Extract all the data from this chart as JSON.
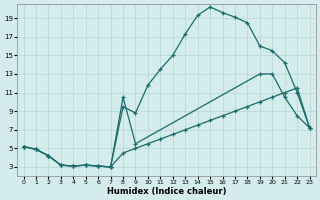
{
  "xlabel": "Humidex (Indice chaleur)",
  "bg_color": "#d4ecec",
  "grid_color": "#b8d4d4",
  "line_color": "#1a6b6b",
  "xlim": [
    -0.5,
    23.5
  ],
  "ylim": [
    2.0,
    20.5
  ],
  "xticks": [
    0,
    1,
    2,
    3,
    4,
    5,
    6,
    7,
    8,
    9,
    10,
    11,
    12,
    13,
    14,
    15,
    16,
    17,
    18,
    19,
    20,
    21,
    22,
    23
  ],
  "yticks": [
    3,
    5,
    7,
    9,
    11,
    13,
    15,
    17,
    19
  ],
  "curve1_x": [
    0,
    1,
    2,
    3,
    4,
    5,
    6,
    7,
    8,
    9,
    10,
    11,
    12,
    13,
    14,
    15,
    16,
    17,
    18,
    19,
    20,
    21,
    22,
    23
  ],
  "curve1_y": [
    5.2,
    4.9,
    4.2,
    3.2,
    3.1,
    3.2,
    3.1,
    3.0,
    4.5,
    5.0,
    5.5,
    6.0,
    6.5,
    7.0,
    7.5,
    8.0,
    8.5,
    9.0,
    9.5,
    10.0,
    10.5,
    11.0,
    11.5,
    7.2
  ],
  "curve2_x": [
    0,
    1,
    2,
    3,
    4,
    5,
    6,
    7,
    8,
    9,
    10,
    11,
    12,
    13,
    14,
    15,
    16,
    17,
    18,
    19,
    20,
    21,
    22,
    23
  ],
  "curve2_y": [
    5.2,
    4.9,
    4.2,
    3.2,
    3.1,
    3.2,
    3.1,
    3.0,
    9.5,
    8.8,
    11.8,
    13.5,
    15.0,
    17.3,
    19.3,
    20.2,
    19.6,
    19.1,
    18.5,
    16.0,
    15.5,
    14.2,
    11.0,
    7.2
  ],
  "curve3_x": [
    0,
    1,
    2,
    3,
    4,
    5,
    6,
    7,
    8,
    9,
    19,
    20,
    21,
    22,
    23
  ],
  "curve3_y": [
    5.2,
    4.9,
    4.2,
    3.2,
    3.1,
    3.2,
    3.1,
    3.0,
    10.5,
    5.5,
    13.0,
    13.0,
    10.5,
    8.5,
    7.2
  ]
}
